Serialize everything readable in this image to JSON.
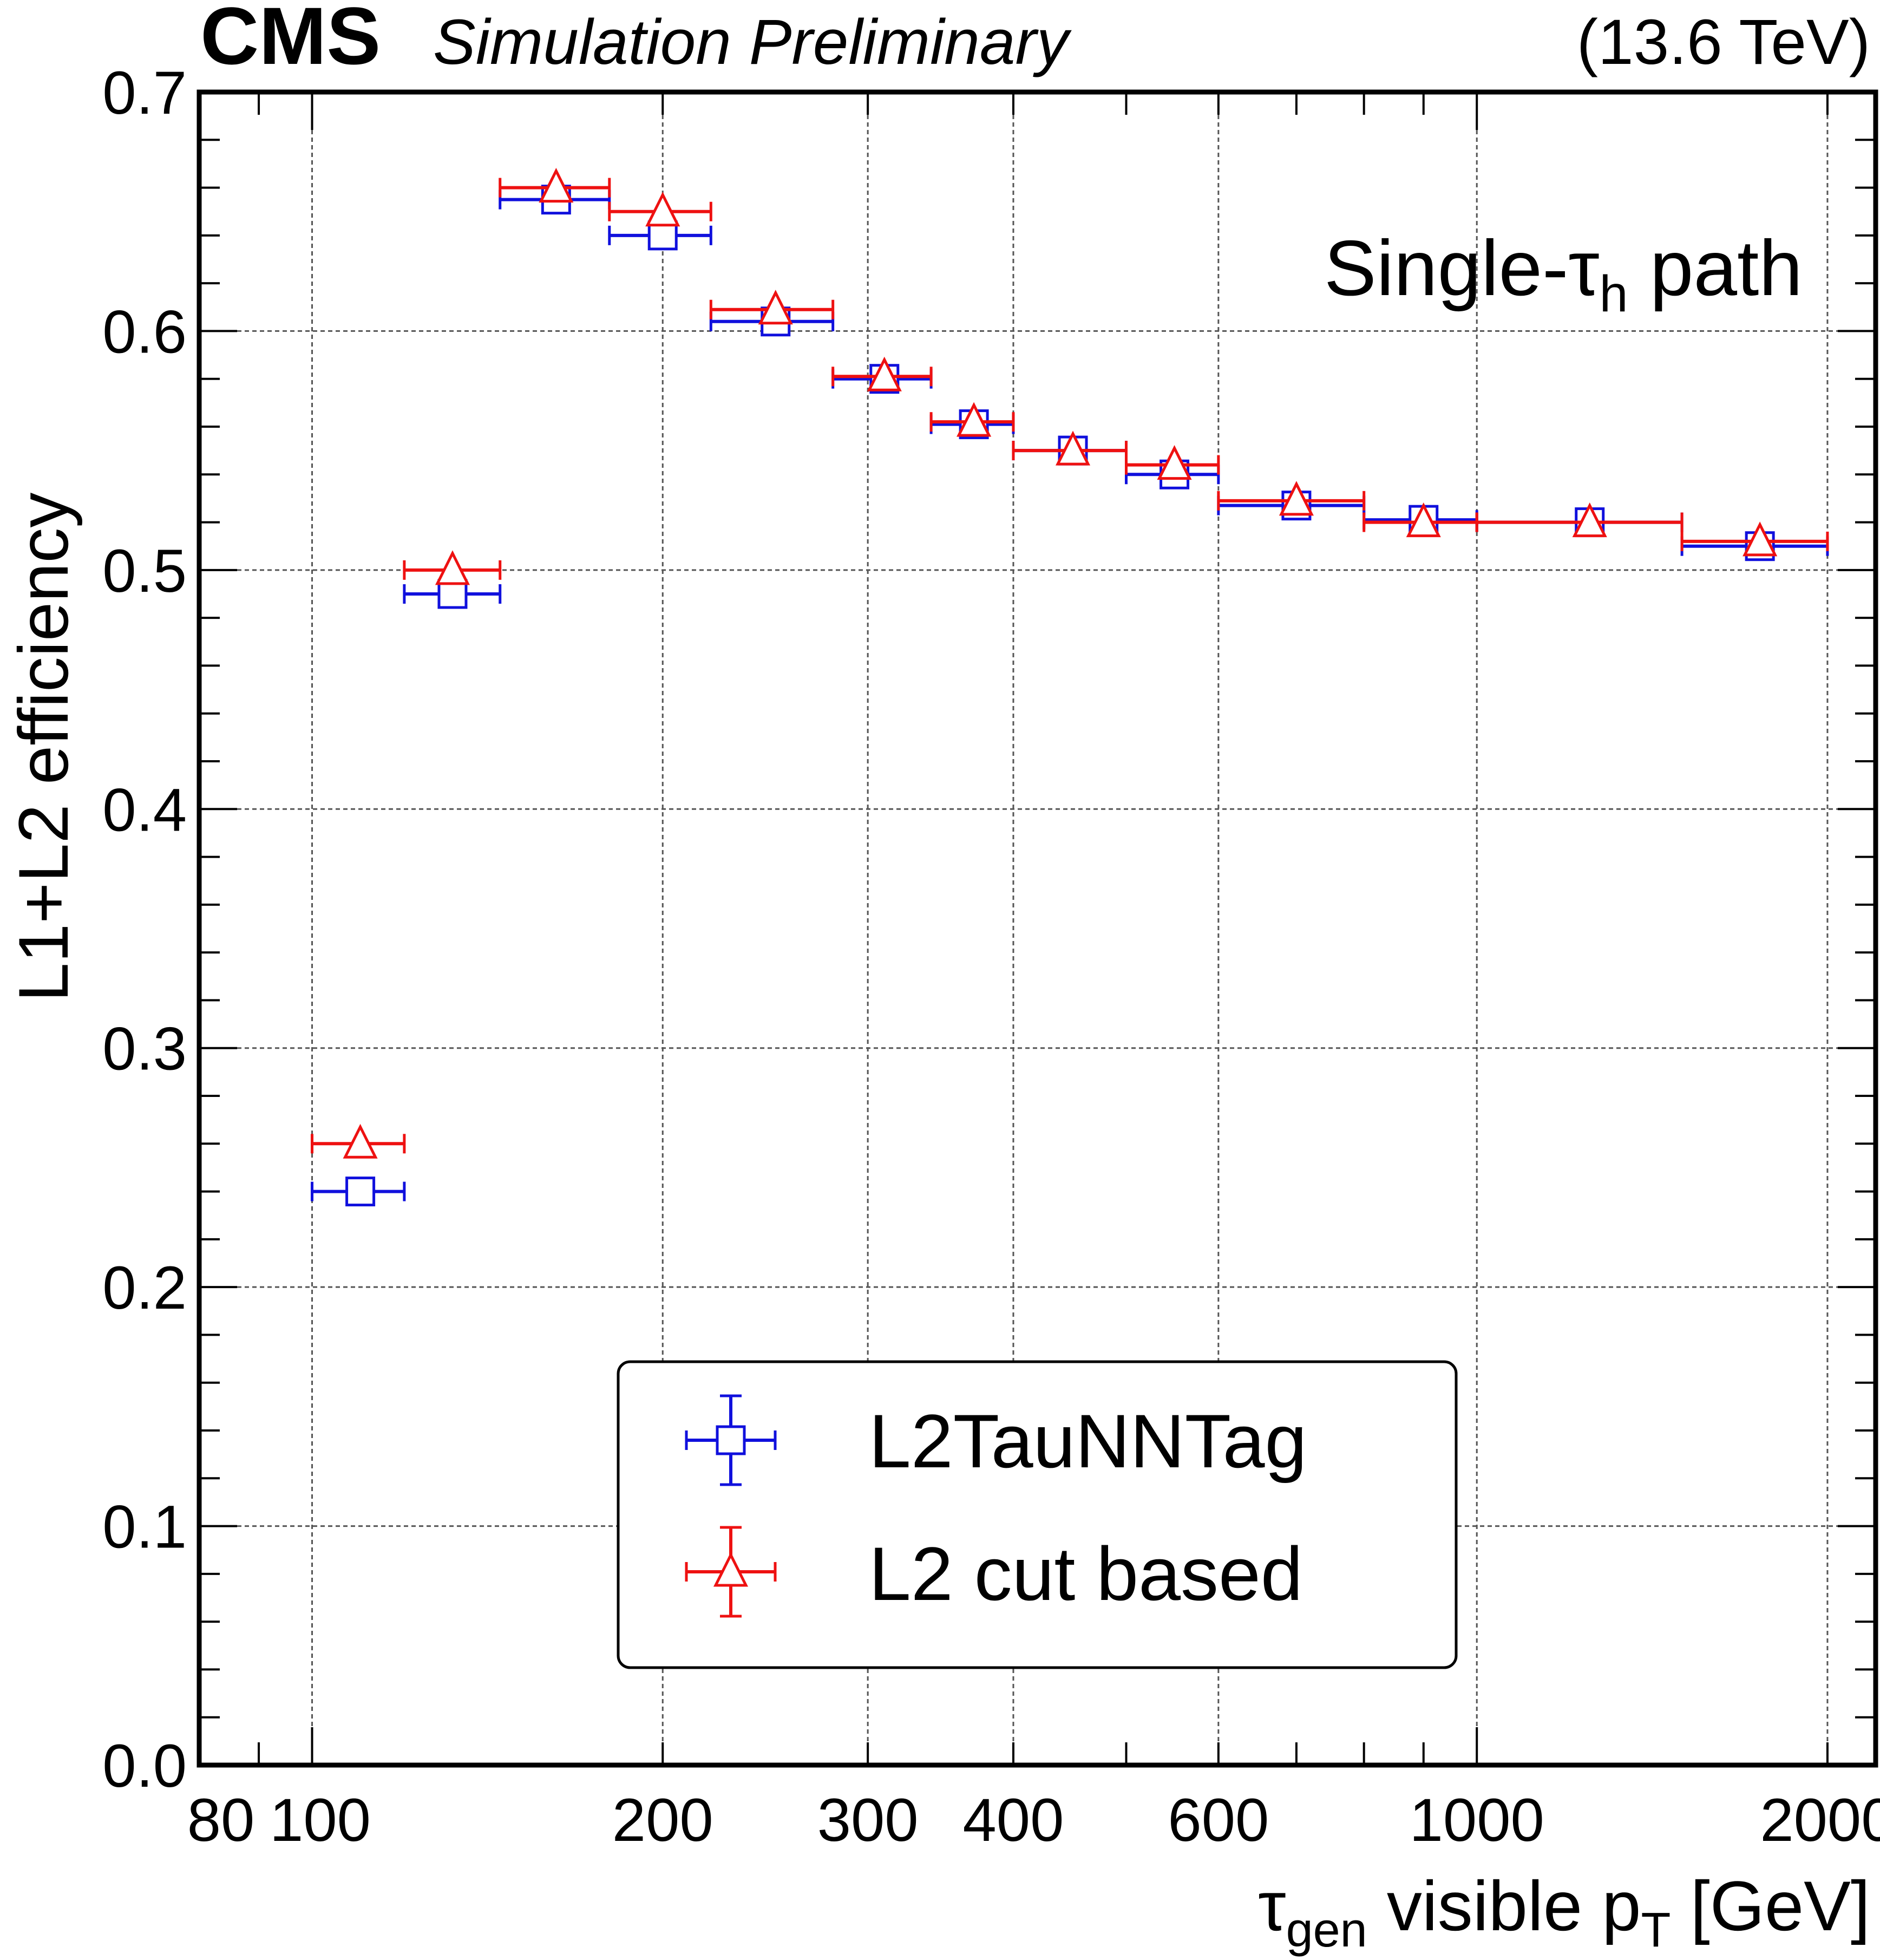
{
  "header": {
    "experiment": "CMS",
    "status": "Simulation Preliminary",
    "energy": "(13.6 TeV)"
  },
  "annotation": {
    "prefix": "Single-τ",
    "subscript": "h",
    "suffix": " path"
  },
  "axis_labels": {
    "x_main": "τ",
    "x_sub": "gen",
    "x_mid": " visible p",
    "x_sub2": "T",
    "x_end": " [GeV]",
    "y": "L1+L2 efficiency"
  },
  "legend": {
    "entries": [
      "L2TauNNTag",
      "L2 cut based"
    ]
  },
  "colors": {
    "series1": "#1010dd",
    "series2": "#ee1111",
    "grid": "#555555"
  },
  "chart_data": {
    "type": "scatter",
    "title": "Single-τh path",
    "xlabel": "τgen visible pT [GeV]",
    "ylabel": "L1+L2 efficiency",
    "xscale": "log",
    "xlim": [
      80,
      2200
    ],
    "ylim": [
      0.0,
      0.7
    ],
    "x_ticks": [
      80,
      100,
      200,
      300,
      400,
      600,
      1000,
      2000
    ],
    "x_tick_labels": [
      "80",
      "100",
      "200",
      "300",
      "400",
      "600",
      "1000",
      "2000"
    ],
    "x_grid": [
      100,
      200,
      300,
      400,
      600,
      1000,
      2000
    ],
    "y_ticks": [
      0.0,
      0.1,
      0.2,
      0.3,
      0.4,
      0.5,
      0.6,
      0.7
    ],
    "y_tick_labels": [
      "0.0",
      "0.1",
      "0.2",
      "0.3",
      "0.4",
      "0.5",
      "0.6",
      "0.7"
    ],
    "bins": [
      [
        100,
        120
      ],
      [
        120,
        145
      ],
      [
        145,
        180
      ],
      [
        180,
        220
      ],
      [
        220,
        280
      ],
      [
        280,
        340
      ],
      [
        340,
        400
      ],
      [
        400,
        500
      ],
      [
        500,
        600
      ],
      [
        600,
        800
      ],
      [
        800,
        1000
      ],
      [
        1000,
        1500
      ],
      [
        1500,
        2000
      ]
    ],
    "x": [
      110,
      132,
      162,
      200,
      250,
      310,
      370,
      450,
      550,
      700,
      900,
      1250,
      1750
    ],
    "series": [
      {
        "name": "L2TauNNTag",
        "marker": "open-square",
        "color": "#1010dd",
        "values": [
          0.24,
          0.49,
          0.655,
          0.64,
          0.604,
          0.58,
          0.561,
          0.55,
          0.54,
          0.527,
          0.521,
          0.52,
          0.51
        ]
      },
      {
        "name": "L2 cut based",
        "marker": "open-triangle",
        "color": "#ee1111",
        "values": [
          0.26,
          0.5,
          0.66,
          0.65,
          0.609,
          0.581,
          0.562,
          0.55,
          0.544,
          0.529,
          0.52,
          0.52,
          0.512
        ]
      }
    ]
  }
}
